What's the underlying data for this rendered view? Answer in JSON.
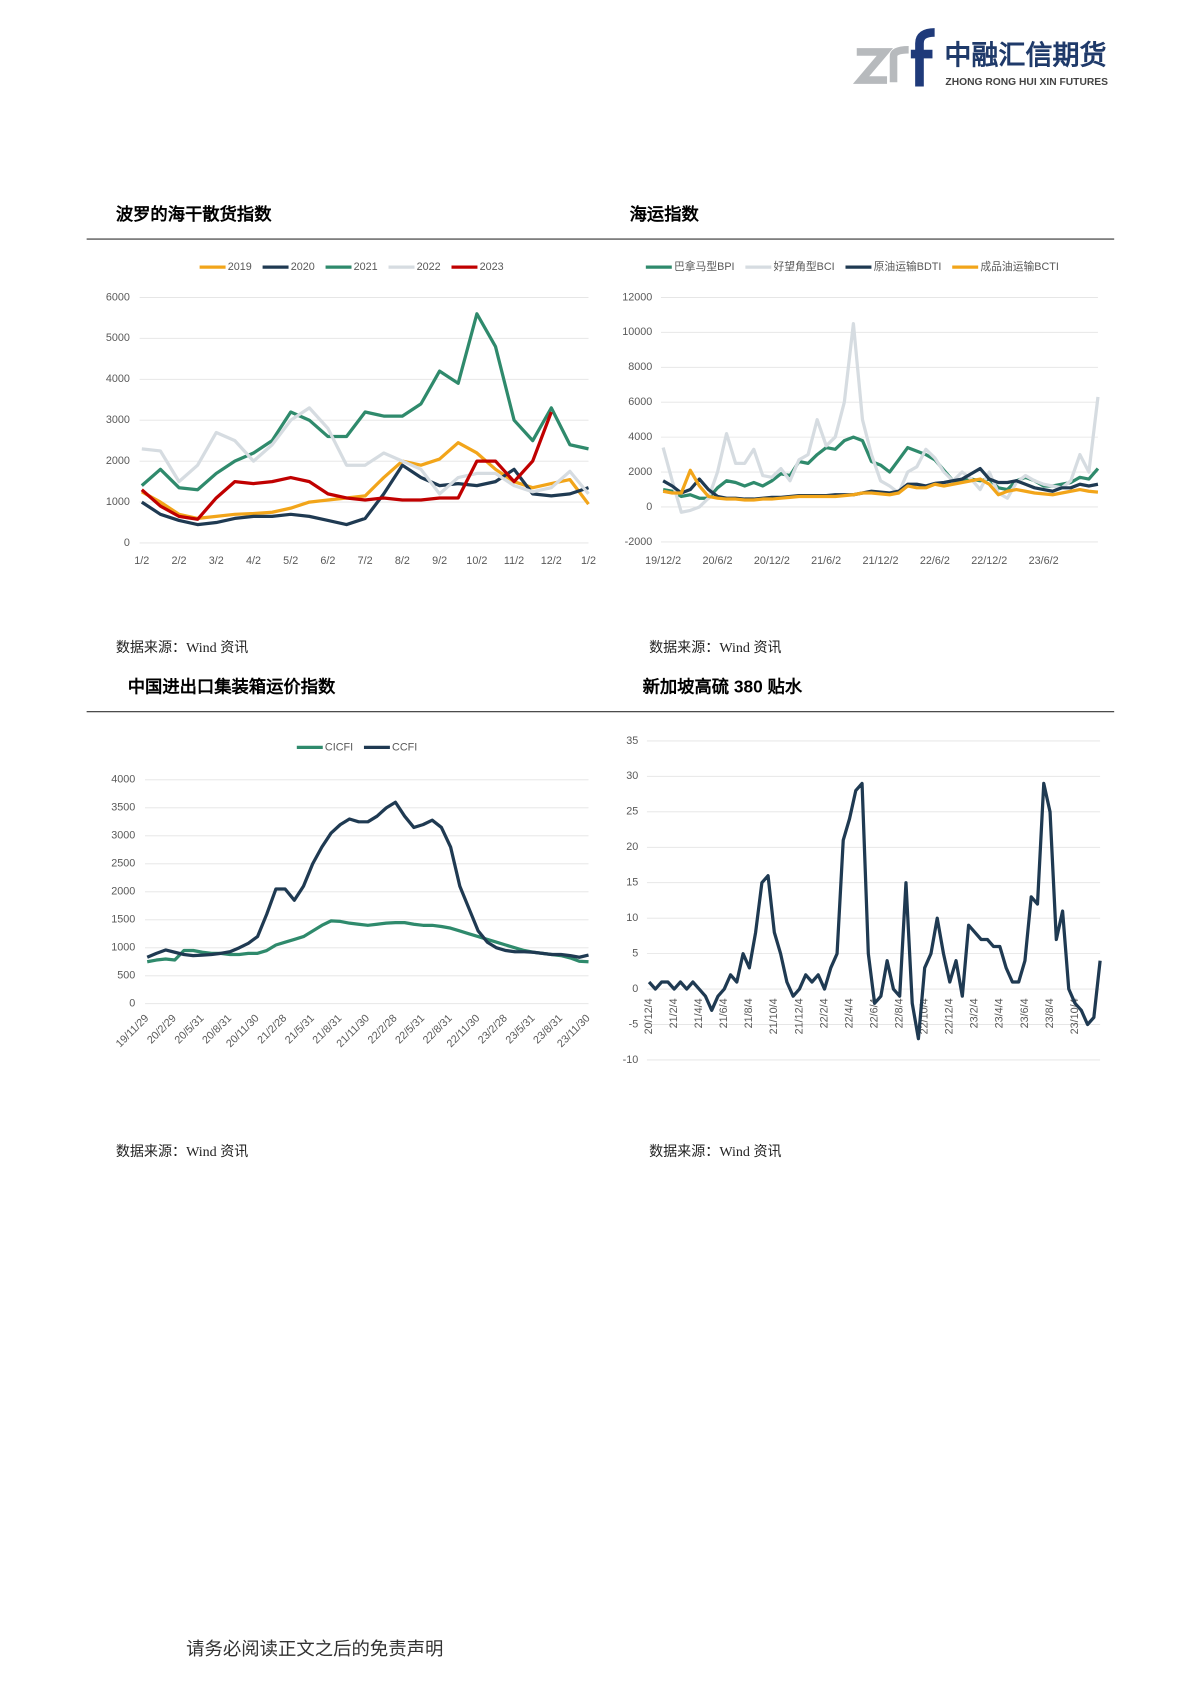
{
  "header": {
    "company": "中融汇信期货",
    "company_en": "ZHONG RONG HUI XIN FUTURES"
  },
  "footer": "请务必阅读正文之后的免责声明",
  "chart_data": [
    {
      "type": "line",
      "title": "波罗的海干散货指数",
      "source": "数据来源：Wind 资讯",
      "categories": [
        "1/2",
        null,
        "2/2",
        null,
        "3/2",
        null,
        "4/2",
        null,
        "5/2",
        null,
        "6/2",
        null,
        "7/2",
        null,
        "8/2",
        null,
        "9/2",
        null,
        "10/2",
        null,
        "11/2",
        null,
        "12/2",
        null,
        "1/2"
      ],
      "ylim": [
        0,
        6000
      ],
      "yticks": [
        0,
        1000,
        2000,
        3000,
        4000,
        5000,
        6000
      ],
      "grid": true,
      "legend": "top",
      "series": [
        {
          "name": "2019",
          "color": "#f2a51a",
          "values": [
            1250,
            1000,
            700,
            600,
            650,
            700,
            720,
            750,
            850,
            1000,
            1050,
            1100,
            1150,
            1600,
            2000,
            1900,
            2050,
            2450,
            2200,
            1800,
            1500,
            1350,
            1450,
            1550,
            950
          ]
        },
        {
          "name": "2020",
          "color": "#1f3a52",
          "values": [
            1000,
            700,
            550,
            450,
            500,
            600,
            650,
            650,
            700,
            650,
            550,
            450,
            600,
            1200,
            1900,
            1600,
            1400,
            1450,
            1400,
            1500,
            1800,
            1200,
            1150,
            1200,
            1350
          ]
        },
        {
          "name": "2021",
          "color": "#2f8a6c",
          "values": [
            1400,
            1800,
            1350,
            1300,
            1700,
            2000,
            2200,
            2500,
            3200,
            3000,
            2600,
            2600,
            3200,
            3100,
            3100,
            3400,
            4200,
            3900,
            5600,
            4800,
            3000,
            2500,
            3300,
            2400,
            2300
          ]
        },
        {
          "name": "2022",
          "color": "#d6dce1",
          "values": [
            2300,
            2250,
            1500,
            1900,
            2700,
            2500,
            2000,
            2400,
            3000,
            3300,
            2800,
            1900,
            1900,
            2200,
            2000,
            1800,
            1200,
            1600,
            1700,
            1700,
            1400,
            1250,
            1350,
            1750,
            1200
          ]
        },
        {
          "name": "2023",
          "color": "#c00000",
          "values": [
            1300,
            900,
            650,
            580,
            1100,
            1500,
            1450,
            1500,
            1600,
            1500,
            1200,
            1100,
            1050,
            1100,
            1050,
            1050,
            1100,
            1100,
            2000,
            2000,
            1500,
            2000,
            3200,
            null,
            null
          ]
        }
      ]
    },
    {
      "type": "line",
      "title": "海运指数",
      "source": "数据来源：Wind 资讯",
      "categories": [
        "19/12/2",
        null,
        null,
        null,
        null,
        null,
        "20/6/2",
        null,
        null,
        null,
        null,
        null,
        "20/12/2",
        null,
        null,
        null,
        null,
        null,
        "21/6/2",
        null,
        null,
        null,
        null,
        null,
        "21/12/2",
        null,
        null,
        null,
        null,
        null,
        "22/6/2",
        null,
        null,
        null,
        null,
        null,
        "22/12/2",
        null,
        null,
        null,
        null,
        null,
        "23/6/2",
        null,
        null,
        null,
        null,
        null,
        null
      ],
      "ylim": [
        -2000,
        12000
      ],
      "yticks": [
        -2000,
        0,
        2000,
        4000,
        6000,
        8000,
        10000,
        12000
      ],
      "grid": true,
      "legend": "top",
      "series": [
        {
          "name": "巴拿马型BPI",
          "color": "#2f8a6c",
          "values": [
            1000,
            900,
            600,
            700,
            500,
            500,
            1100,
            1500,
            1400,
            1200,
            1400,
            1200,
            1500,
            1900,
            1800,
            2600,
            2500,
            3000,
            3400,
            3300,
            3800,
            4000,
            3800,
            2600,
            2400,
            2000,
            2700,
            3400,
            3200,
            3000,
            2700,
            2100,
            1500,
            1500,
            1600,
            1500,
            1600,
            1100,
            1000,
            1500,
            1700,
            1500,
            1200,
            1200,
            1300,
            1400,
            1700,
            1600,
            2200
          ]
        },
        {
          "name": "好望角型BCI",
          "color": "#d6dce1",
          "values": [
            3400,
            1500,
            -300,
            -200,
            0,
            500,
            2000,
            4200,
            2500,
            2500,
            3300,
            1800,
            1700,
            2200,
            1500,
            2700,
            3000,
            5000,
            3500,
            4000,
            6000,
            10500,
            5000,
            3000,
            1500,
            1200,
            800,
            2000,
            2300,
            3300,
            2800,
            2000,
            1500,
            2000,
            1600,
            1000,
            2000,
            800,
            500,
            1400,
            1800,
            1500,
            1300,
            1200,
            1100,
            1500,
            3000,
            2000,
            6300
          ]
        },
        {
          "name": "原油运输BDTI",
          "color": "#1f3a52",
          "values": [
            1500,
            1200,
            800,
            1000,
            1600,
            1000,
            600,
            500,
            500,
            450,
            450,
            500,
            550,
            550,
            600,
            650,
            650,
            650,
            650,
            700,
            700,
            700,
            800,
            900,
            850,
            800,
            900,
            1300,
            1300,
            1200,
            1350,
            1400,
            1500,
            1600,
            1900,
            2200,
            1600,
            1400,
            1400,
            1500,
            1300,
            1100,
            1000,
            900,
            1100,
            1100,
            1300,
            1200,
            1300
          ]
        },
        {
          "name": "成品油运输BCTI",
          "color": "#f2a51a",
          "values": [
            900,
            800,
            800,
            2100,
            1200,
            600,
            500,
            450,
            450,
            400,
            400,
            450,
            450,
            500,
            550,
            600,
            600,
            600,
            600,
            600,
            650,
            700,
            800,
            800,
            750,
            700,
            800,
            1200,
            1100,
            1100,
            1300,
            1200,
            1300,
            1400,
            1500,
            1600,
            1300,
            700,
            900,
            1000,
            900,
            800,
            750,
            700,
            800,
            900,
            1000,
            900,
            850
          ]
        }
      ]
    },
    {
      "type": "line",
      "title": "中国进出口集装箱运价指数",
      "source": "数据来源：Wind 资讯",
      "categories": [
        "19/11/29",
        null,
        null,
        "20/2/29",
        null,
        null,
        "20/5/31",
        null,
        null,
        "20/8/31",
        null,
        null,
        "20/11/30",
        null,
        null,
        "21/2/28",
        null,
        null,
        "21/5/31",
        null,
        null,
        "21/8/31",
        null,
        null,
        "21/11/30",
        null,
        null,
        "22/2/28",
        null,
        null,
        "22/5/31",
        null,
        null,
        "22/8/31",
        null,
        null,
        "22/11/30",
        null,
        null,
        "23/2/28",
        null,
        null,
        "23/5/31",
        null,
        null,
        "23/8/31",
        null,
        null,
        "23/11/30"
      ],
      "ylim": [
        0,
        4000
      ],
      "yticks": [
        0,
        500,
        1000,
        1500,
        2000,
        2500,
        3000,
        3500,
        4000
      ],
      "grid": true,
      "legend": "top",
      "series": [
        {
          "name": "CICFI",
          "color": "#2f8a6c",
          "values": [
            750,
            780,
            800,
            780,
            950,
            950,
            920,
            900,
            900,
            880,
            880,
            900,
            900,
            950,
            1050,
            1100,
            1150,
            1200,
            1300,
            1400,
            1480,
            1470,
            1440,
            1420,
            1400,
            1420,
            1440,
            1450,
            1450,
            1420,
            1400,
            1400,
            1380,
            1350,
            1300,
            1250,
            1200,
            1150,
            1100,
            1050,
            1000,
            950,
            920,
            900,
            880,
            860,
            820,
            760,
            750
          ]
        },
        {
          "name": "CCFI",
          "color": "#1f3a52",
          "values": [
            830,
            900,
            960,
            920,
            880,
            860,
            870,
            880,
            900,
            930,
            1000,
            1080,
            1200,
            1600,
            2050,
            2050,
            1850,
            2100,
            2500,
            2800,
            3050,
            3200,
            3300,
            3250,
            3250,
            3350,
            3500,
            3600,
            3350,
            3150,
            3200,
            3280,
            3150,
            2800,
            2100,
            1700,
            1300,
            1100,
            1000,
            950,
            930,
            930,
            920,
            900,
            880,
            880,
            860,
            830,
            870
          ]
        }
      ]
    },
    {
      "type": "line",
      "title": "新加坡高硫 380 贴水",
      "source": "数据来源：Wind 资讯",
      "categories": [
        "20/12/4",
        null,
        null,
        null,
        "21/2/4",
        null,
        null,
        null,
        "21/4/4",
        null,
        null,
        null,
        "21/6/4",
        null,
        null,
        null,
        "21/8/4",
        null,
        null,
        null,
        "21/10/4",
        null,
        null,
        null,
        "21/12/4",
        null,
        null,
        null,
        "22/2/4",
        null,
        null,
        null,
        "22/4/4",
        null,
        null,
        null,
        "22/6/4",
        null,
        null,
        null,
        "22/8/4",
        null,
        null,
        null,
        "22/10/4",
        null,
        null,
        null,
        "22/12/4",
        null,
        null,
        null,
        "23/2/4",
        null,
        null,
        null,
        "23/4/4",
        null,
        null,
        null,
        "23/6/4",
        null,
        null,
        null,
        "23/8/4",
        null,
        null,
        null,
        "23/10/4",
        null,
        null,
        null,
        null
      ],
      "ylim": [
        -10,
        35
      ],
      "yticks": [
        -10,
        -5,
        0,
        5,
        10,
        15,
        20,
        25,
        30,
        35
      ],
      "grid": true,
      "color": "#1f3a52",
      "values": [
        1,
        0,
        1,
        1,
        0,
        1,
        0,
        1,
        0,
        -1,
        -3,
        -1,
        0,
        2,
        1,
        5,
        3,
        8,
        15,
        16,
        8,
        5,
        1,
        -1,
        0,
        2,
        1,
        2,
        0,
        3,
        5,
        21,
        24,
        28,
        29,
        5,
        -2,
        -1,
        4,
        0,
        -1,
        15,
        -2,
        -7,
        3,
        5,
        10,
        5,
        1,
        4,
        -1,
        9,
        8,
        7,
        7,
        6,
        6,
        3,
        1,
        1,
        4,
        13,
        12,
        29,
        25,
        7,
        11,
        0,
        -2,
        -3,
        -5,
        -4,
        4
      ]
    }
  ]
}
